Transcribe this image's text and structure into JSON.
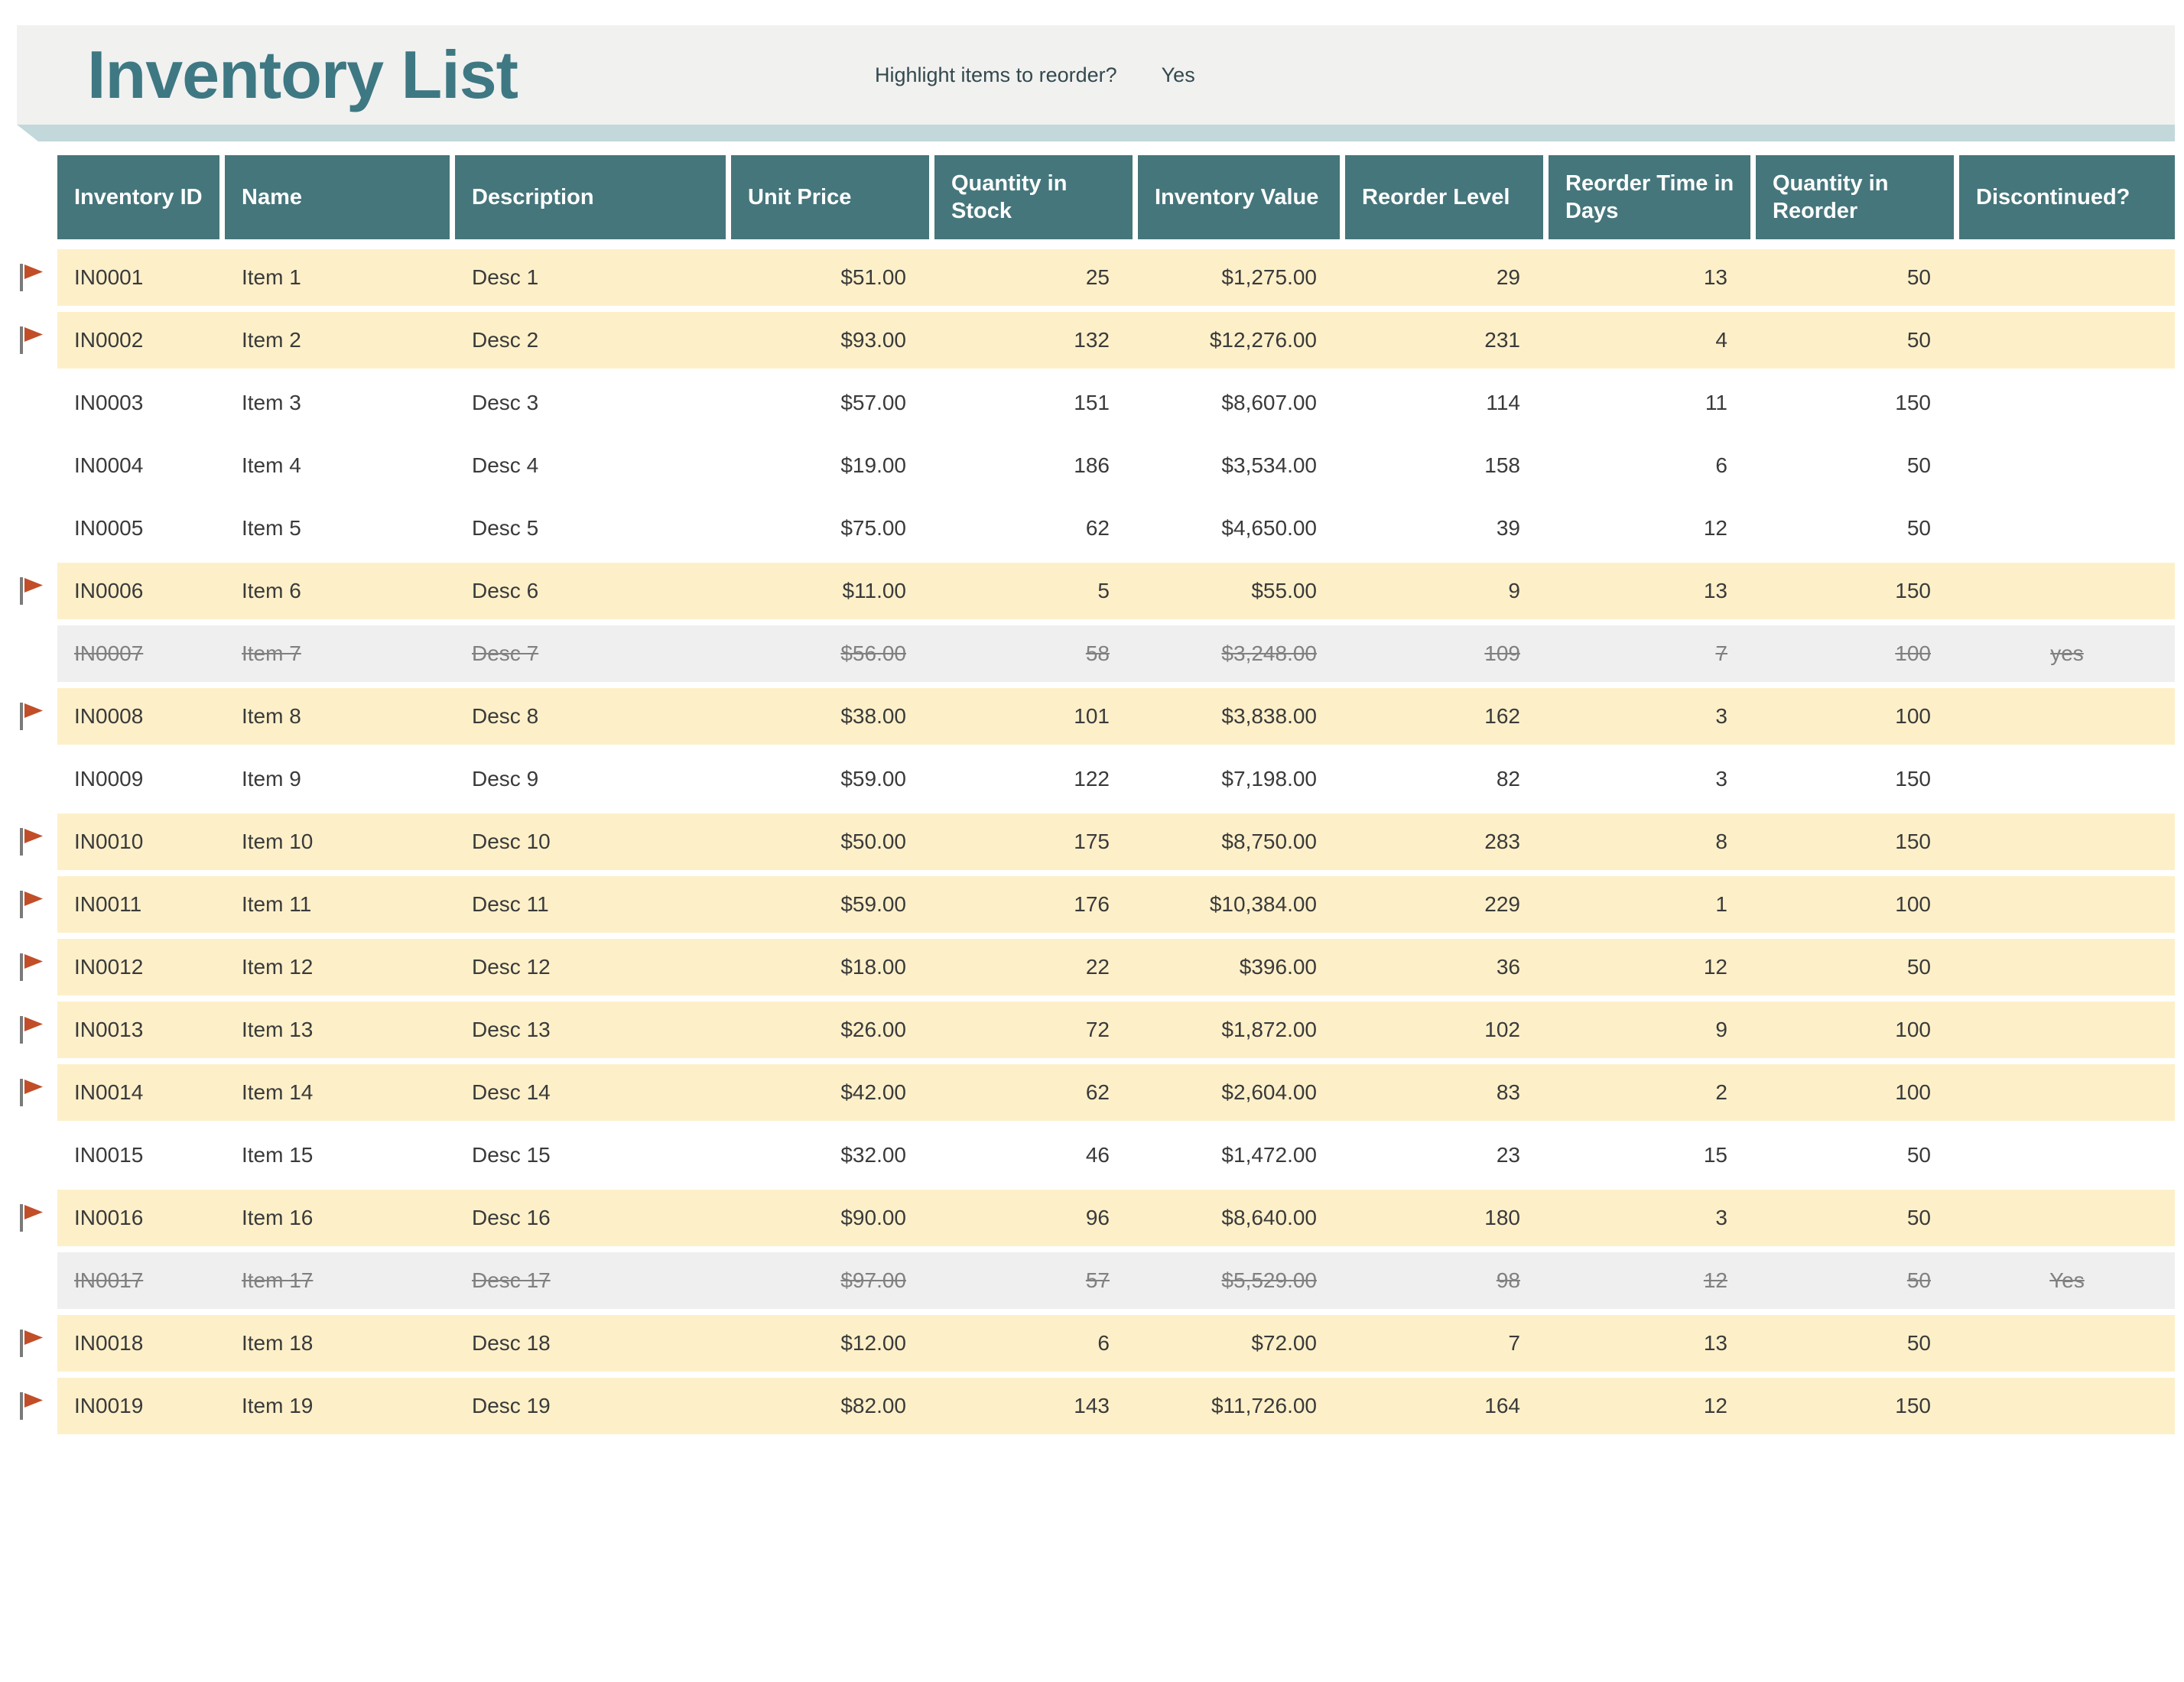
{
  "page": {
    "title": "Inventory List"
  },
  "toolbar": {
    "reorder_question": "Highlight items to reorder?",
    "reorder_answer": "Yes"
  },
  "colors": {
    "header_teal": "#45767B",
    "title_teal": "#3E7883",
    "ribbon_teal": "#C2D8DA",
    "reorder_row_yellow": "#FDF0C9",
    "discontinued_row_gray": "#EFEFEF",
    "flag_red": "#C14E28",
    "flag_pole_gray": "#7A7A7A"
  },
  "table": {
    "columns": [
      {
        "field": "id",
        "label": "Inventory ID",
        "align": "left"
      },
      {
        "field": "name",
        "label": "Name",
        "align": "left"
      },
      {
        "field": "description",
        "label": "Description",
        "align": "left"
      },
      {
        "field": "unit_price",
        "label": "Unit Price",
        "align": "right"
      },
      {
        "field": "quantity_in_stock",
        "label": "Quantity in Stock",
        "align": "right"
      },
      {
        "field": "inventory_value",
        "label": "Inventory Value",
        "align": "right"
      },
      {
        "field": "reorder_level",
        "label": "Reorder Level",
        "align": "right"
      },
      {
        "field": "reorder_time_in_days",
        "label": "Reorder Time in Days",
        "align": "right"
      },
      {
        "field": "quantity_in_reorder",
        "label": "Quantity in Reorder",
        "align": "right"
      },
      {
        "field": "discontinued",
        "label": "Discontinued?",
        "align": "center"
      }
    ],
    "rows": [
      {
        "id": "IN0001",
        "name": "Item 1",
        "description": "Desc 1",
        "unit_price": "$51.00",
        "quantity_in_stock": "25",
        "inventory_value": "$1,275.00",
        "reorder_level": "29",
        "reorder_time_in_days": "13",
        "quantity_in_reorder": "50",
        "discontinued": "",
        "flagged": true,
        "state": "reorder"
      },
      {
        "id": "IN0002",
        "name": "Item 2",
        "description": "Desc 2",
        "unit_price": "$93.00",
        "quantity_in_stock": "132",
        "inventory_value": "$12,276.00",
        "reorder_level": "231",
        "reorder_time_in_days": "4",
        "quantity_in_reorder": "50",
        "discontinued": "",
        "flagged": true,
        "state": "reorder"
      },
      {
        "id": "IN0003",
        "name": "Item 3",
        "description": "Desc 3",
        "unit_price": "$57.00",
        "quantity_in_stock": "151",
        "inventory_value": "$8,607.00",
        "reorder_level": "114",
        "reorder_time_in_days": "11",
        "quantity_in_reorder": "150",
        "discontinued": "",
        "flagged": false,
        "state": "normal"
      },
      {
        "id": "IN0004",
        "name": "Item 4",
        "description": "Desc 4",
        "unit_price": "$19.00",
        "quantity_in_stock": "186",
        "inventory_value": "$3,534.00",
        "reorder_level": "158",
        "reorder_time_in_days": "6",
        "quantity_in_reorder": "50",
        "discontinued": "",
        "flagged": false,
        "state": "normal"
      },
      {
        "id": "IN0005",
        "name": "Item 5",
        "description": "Desc 5",
        "unit_price": "$75.00",
        "quantity_in_stock": "62",
        "inventory_value": "$4,650.00",
        "reorder_level": "39",
        "reorder_time_in_days": "12",
        "quantity_in_reorder": "50",
        "discontinued": "",
        "flagged": false,
        "state": "normal"
      },
      {
        "id": "IN0006",
        "name": "Item 6",
        "description": "Desc 6",
        "unit_price": "$11.00",
        "quantity_in_stock": "5",
        "inventory_value": "$55.00",
        "reorder_level": "9",
        "reorder_time_in_days": "13",
        "quantity_in_reorder": "150",
        "discontinued": "",
        "flagged": true,
        "state": "reorder"
      },
      {
        "id": "IN0007",
        "name": "Item 7",
        "description": "Desc 7",
        "unit_price": "$56.00",
        "quantity_in_stock": "58",
        "inventory_value": "$3,248.00",
        "reorder_level": "109",
        "reorder_time_in_days": "7",
        "quantity_in_reorder": "100",
        "discontinued": "yes",
        "flagged": false,
        "state": "discontinued"
      },
      {
        "id": "IN0008",
        "name": "Item 8",
        "description": "Desc 8",
        "unit_price": "$38.00",
        "quantity_in_stock": "101",
        "inventory_value": "$3,838.00",
        "reorder_level": "162",
        "reorder_time_in_days": "3",
        "quantity_in_reorder": "100",
        "discontinued": "",
        "flagged": true,
        "state": "reorder"
      },
      {
        "id": "IN0009",
        "name": "Item 9",
        "description": "Desc 9",
        "unit_price": "$59.00",
        "quantity_in_stock": "122",
        "inventory_value": "$7,198.00",
        "reorder_level": "82",
        "reorder_time_in_days": "3",
        "quantity_in_reorder": "150",
        "discontinued": "",
        "flagged": false,
        "state": "normal"
      },
      {
        "id": "IN0010",
        "name": "Item 10",
        "description": "Desc 10",
        "unit_price": "$50.00",
        "quantity_in_stock": "175",
        "inventory_value": "$8,750.00",
        "reorder_level": "283",
        "reorder_time_in_days": "8",
        "quantity_in_reorder": "150",
        "discontinued": "",
        "flagged": true,
        "state": "reorder"
      },
      {
        "id": "IN0011",
        "name": "Item 11",
        "description": "Desc 11",
        "unit_price": "$59.00",
        "quantity_in_stock": "176",
        "inventory_value": "$10,384.00",
        "reorder_level": "229",
        "reorder_time_in_days": "1",
        "quantity_in_reorder": "100",
        "discontinued": "",
        "flagged": true,
        "state": "reorder"
      },
      {
        "id": "IN0012",
        "name": "Item 12",
        "description": "Desc 12",
        "unit_price": "$18.00",
        "quantity_in_stock": "22",
        "inventory_value": "$396.00",
        "reorder_level": "36",
        "reorder_time_in_days": "12",
        "quantity_in_reorder": "50",
        "discontinued": "",
        "flagged": true,
        "state": "reorder"
      },
      {
        "id": "IN0013",
        "name": "Item 13",
        "description": "Desc 13",
        "unit_price": "$26.00",
        "quantity_in_stock": "72",
        "inventory_value": "$1,872.00",
        "reorder_level": "102",
        "reorder_time_in_days": "9",
        "quantity_in_reorder": "100",
        "discontinued": "",
        "flagged": true,
        "state": "reorder"
      },
      {
        "id": "IN0014",
        "name": "Item 14",
        "description": "Desc 14",
        "unit_price": "$42.00",
        "quantity_in_stock": "62",
        "inventory_value": "$2,604.00",
        "reorder_level": "83",
        "reorder_time_in_days": "2",
        "quantity_in_reorder": "100",
        "discontinued": "",
        "flagged": true,
        "state": "reorder"
      },
      {
        "id": "IN0015",
        "name": "Item 15",
        "description": "Desc 15",
        "unit_price": "$32.00",
        "quantity_in_stock": "46",
        "inventory_value": "$1,472.00",
        "reorder_level": "23",
        "reorder_time_in_days": "15",
        "quantity_in_reorder": "50",
        "discontinued": "",
        "flagged": false,
        "state": "normal"
      },
      {
        "id": "IN0016",
        "name": "Item 16",
        "description": "Desc 16",
        "unit_price": "$90.00",
        "quantity_in_stock": "96",
        "inventory_value": "$8,640.00",
        "reorder_level": "180",
        "reorder_time_in_days": "3",
        "quantity_in_reorder": "50",
        "discontinued": "",
        "flagged": true,
        "state": "reorder"
      },
      {
        "id": "IN0017",
        "name": "Item 17",
        "description": "Desc 17",
        "unit_price": "$97.00",
        "quantity_in_stock": "57",
        "inventory_value": "$5,529.00",
        "reorder_level": "98",
        "reorder_time_in_days": "12",
        "quantity_in_reorder": "50",
        "discontinued": "Yes",
        "flagged": false,
        "state": "discontinued"
      },
      {
        "id": "IN0018",
        "name": "Item 18",
        "description": "Desc 18",
        "unit_price": "$12.00",
        "quantity_in_stock": "6",
        "inventory_value": "$72.00",
        "reorder_level": "7",
        "reorder_time_in_days": "13",
        "quantity_in_reorder": "50",
        "discontinued": "",
        "flagged": true,
        "state": "reorder"
      },
      {
        "id": "IN0019",
        "name": "Item 19",
        "description": "Desc 19",
        "unit_price": "$82.00",
        "quantity_in_stock": "143",
        "inventory_value": "$11,726.00",
        "reorder_level": "164",
        "reorder_time_in_days": "12",
        "quantity_in_reorder": "150",
        "discontinued": "",
        "flagged": true,
        "state": "reorder"
      }
    ]
  }
}
